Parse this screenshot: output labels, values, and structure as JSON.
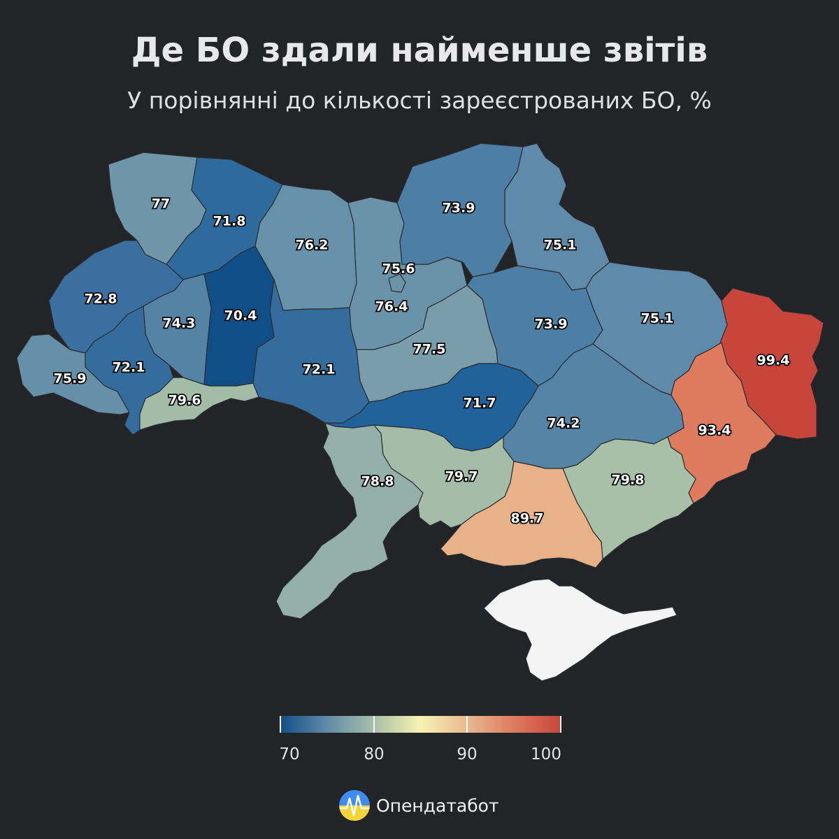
{
  "header": {
    "title": "Де БО здали найменше звітів",
    "subtitle": "У порівнянні до кількості зареєстрованих БО, %"
  },
  "regions": [
    {
      "key": "volyn",
      "value": "77",
      "color": "#6f95a8"
    },
    {
      "key": "rivne",
      "value": "71.8",
      "color": "#2f6a9d"
    },
    {
      "key": "lviv",
      "value": "72.8",
      "color": "#3b6fa0"
    },
    {
      "key": "ternopil",
      "value": "74.3",
      "color": "#5583a6"
    },
    {
      "key": "khmelnytskyi",
      "value": "70.4",
      "color": "#114e87"
    },
    {
      "key": "zhytomyr",
      "value": "76.2",
      "color": "#6791a9"
    },
    {
      "key": "zakarpattia",
      "value": "75.9",
      "color": "#6590a8"
    },
    {
      "key": "ivano_frankivsk",
      "value": "72.1",
      "color": "#356c9e"
    },
    {
      "key": "chernivtsi",
      "value": "79.6",
      "color": "#a3bca7"
    },
    {
      "key": "vinnytsia",
      "value": "72.1",
      "color": "#356c9e"
    },
    {
      "key": "kyiv_oblast",
      "value": "75.6",
      "color": "#6a93aa"
    },
    {
      "key": "kyiv_city",
      "value": "76.4",
      "color": "#6c94a9"
    },
    {
      "key": "cherkasy",
      "value": "77.5",
      "color": "#7a9dab"
    },
    {
      "key": "chernihiv",
      "value": "73.9",
      "color": "#4d7ea4"
    },
    {
      "key": "sumy",
      "value": "75.1",
      "color": "#5f8aa9"
    },
    {
      "key": "poltava",
      "value": "73.9",
      "color": "#4d7ea4"
    },
    {
      "key": "kharkiv",
      "value": "75.1",
      "color": "#5f8aa9"
    },
    {
      "key": "luhansk",
      "value": "99.4",
      "color": "#c8453b"
    },
    {
      "key": "kirovohrad",
      "value": "71.7",
      "color": "#22629a"
    },
    {
      "key": "dnipro",
      "value": "74.2",
      "color": "#5684a7"
    },
    {
      "key": "donetsk",
      "value": "93.4",
      "color": "#de7a5e"
    },
    {
      "key": "odesa",
      "value": "78.8",
      "color": "#94b0a8"
    },
    {
      "key": "mykolaiv",
      "value": "79.7",
      "color": "#a5bda8"
    },
    {
      "key": "zaporizhzhia",
      "value": "79.8",
      "color": "#a8bfa8"
    },
    {
      "key": "kherson",
      "value": "89.7",
      "color": "#e8b188"
    }
  ],
  "crimea_color": "#f4f4f4",
  "legend": {
    "ticks": [
      "70",
      "80",
      "90",
      "100"
    ],
    "gradient": [
      "#114e87",
      "#5f8aa9",
      "#a8bfa8",
      "#f8f2b0",
      "#e9b98f",
      "#de7a5e",
      "#c8453b"
    ]
  },
  "brand": {
    "name": "Опендатабот",
    "logo_icon": "heartbeat-circle-icon",
    "logo_colors": [
      "#3e8cf0",
      "#f5d33a"
    ]
  }
}
